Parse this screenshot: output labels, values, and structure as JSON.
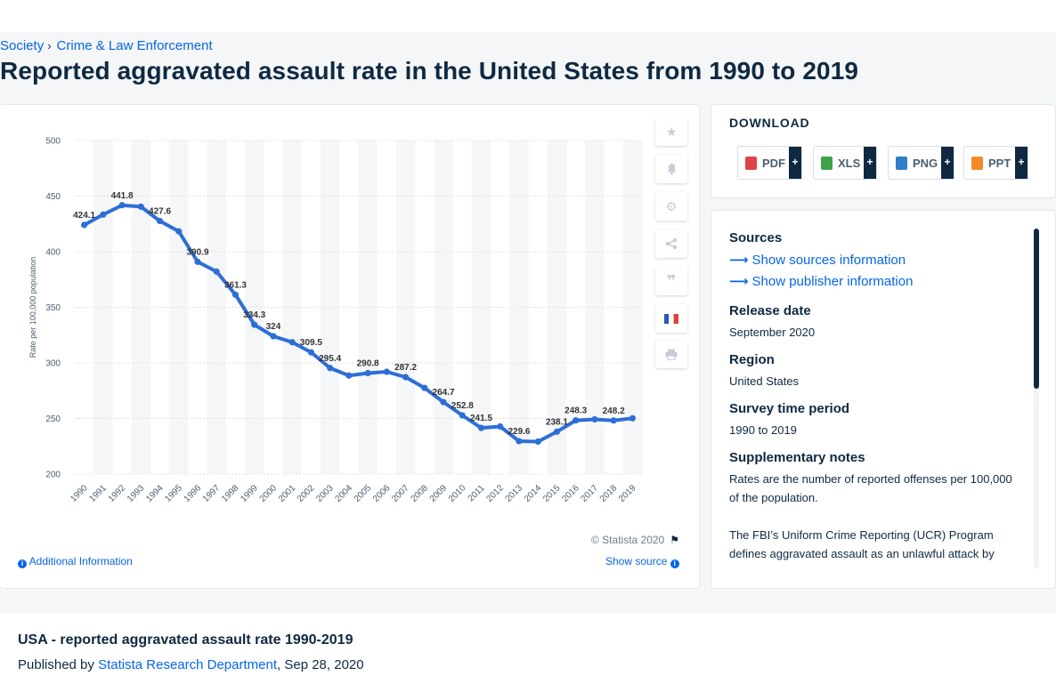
{
  "breadcrumb": {
    "items": [
      "Society",
      "Crime & Law Enforcement"
    ],
    "separator": "›"
  },
  "page_title": "Reported aggravated assault rate in the United States from 1990 to 2019",
  "chart_data": {
    "type": "line",
    "title": "",
    "ylabel": "Rate per 100,000 population",
    "xlabel": "",
    "ylim": [
      200,
      500
    ],
    "yticks": [
      200,
      250,
      300,
      350,
      400,
      450,
      500
    ],
    "grid": true,
    "categories": [
      "1990",
      "1991",
      "1992",
      "1993",
      "1994",
      "1995",
      "1996",
      "1997",
      "1998",
      "1999",
      "2000",
      "2001",
      "2002",
      "2003",
      "2004",
      "2005",
      "2006",
      "2007",
      "2008",
      "2009",
      "2010",
      "2011",
      "2012",
      "2013",
      "2014",
      "2015",
      "2016",
      "2017",
      "2018",
      "2019"
    ],
    "series": [
      {
        "name": "",
        "color": "#2d6ed7",
        "values": [
          424.1,
          433.4,
          441.8,
          440.5,
          427.6,
          418.3,
          390.9,
          382.1,
          361.3,
          334.3,
          324,
          318.6,
          309.5,
          295.4,
          288.6,
          290.8,
          292,
          287.2,
          277.5,
          264.7,
          252.8,
          241.5,
          242.8,
          229.6,
          229.2,
          238.1,
          248.3,
          249.2,
          248.2,
          250.2
        ],
        "labels": [
          "424.1",
          "",
          "441.8",
          "",
          "427.6",
          "",
          "390.9",
          "",
          "361.3",
          "334.3",
          "324",
          "",
          "309.5",
          "295.4",
          "",
          "290.8",
          "",
          "287.2",
          "",
          "264.7",
          "252.8",
          "241.5",
          "",
          "229.6",
          "",
          "238.1",
          "248.3",
          "",
          "248.2",
          ""
        ]
      }
    ]
  },
  "chart_footer": {
    "copyright": "© Statista 2020",
    "additional_info": "Additional Information",
    "show_source": "Show source"
  },
  "tools": [
    "star-icon",
    "bell-icon",
    "gear-icon",
    "share-icon",
    "quote-icon",
    "flag-france-icon",
    "print-icon"
  ],
  "download": {
    "title": "DOWNLOAD",
    "buttons": [
      {
        "label": "PDF",
        "plus": "+",
        "color": "#e0424a"
      },
      {
        "label": "XLS",
        "plus": "+",
        "color": "#3ea34b"
      },
      {
        "label": "PNG",
        "plus": "+",
        "color": "#2e7fc7"
      },
      {
        "label": "PPT",
        "plus": "+",
        "color": "#f08a2c"
      }
    ]
  },
  "info": {
    "sources_heading": "Sources",
    "show_sources": "Show sources information",
    "show_publisher": "Show publisher information",
    "release_heading": "Release date",
    "release_value": "September 2020",
    "region_heading": "Region",
    "region_value": "United States",
    "period_heading": "Survey time period",
    "period_value": "1990 to 2019",
    "notes_heading": "Supplementary notes",
    "notes_p1": "Rates are the number of reported offenses per 100,000 of the population.",
    "notes_p2": "The FBI’s Uniform Crime Reporting (UCR) Program defines aggravated assault as an unlawful attack by"
  },
  "footer": {
    "title": "USA - reported aggravated assault rate 1990-2019",
    "published_prefix": "Published by",
    "publisher": "Statista Research Department",
    "date": ", Sep 28, 2020"
  },
  "colors": {
    "accent": "#0666e5",
    "dark": "#0f2942",
    "line": "#2d6ed7"
  }
}
